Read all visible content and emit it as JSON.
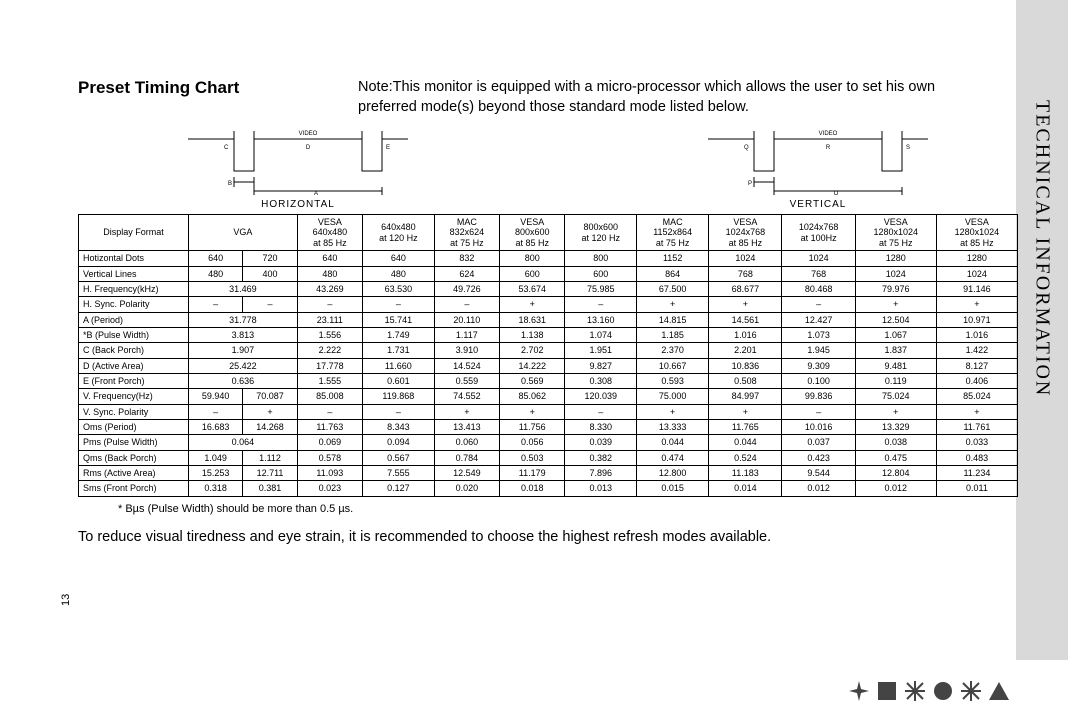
{
  "title": "Preset Timing Chart",
  "note": "Note:This monitor is equipped with a micro-processor which allows the user to set his own preferred mode(s) beyond those standard mode listed below.",
  "diagram_h": {
    "video": "VIDEO",
    "c": "C",
    "d": "D",
    "e": "E",
    "b": "B",
    "a": "A",
    "label": "HORIZONTAL"
  },
  "diagram_v": {
    "video": "VIDEO",
    "q": "Q",
    "r": "R",
    "s": "S",
    "p": "P",
    "o": "O",
    "label": "VERTICAL"
  },
  "side_tab": "TECHNICAL INFORMATION",
  "page_num": "13",
  "footnote": "* Bµs (Pulse Width) should be more than 0.5 µs.",
  "bottom_note": "To reduce visual tiredness and eye strain, it is recommended to choose the highest refresh modes available.",
  "table": {
    "header_row_label": "Display Format",
    "columns": [
      {
        "span": 2,
        "lines": [
          "VGA"
        ]
      },
      {
        "span": 1,
        "lines": [
          "VESA",
          "640x480",
          "at 85 Hz"
        ]
      },
      {
        "span": 1,
        "lines": [
          "640x480",
          "at 120 Hz"
        ]
      },
      {
        "span": 1,
        "lines": [
          "MAC",
          "832x624",
          "at 75 Hz"
        ]
      },
      {
        "span": 1,
        "lines": [
          "VESA",
          "800x600",
          "at 85 Hz"
        ]
      },
      {
        "span": 1,
        "lines": [
          "800x600",
          "at 120 Hz"
        ]
      },
      {
        "span": 1,
        "lines": [
          "MAC",
          "1152x864",
          "at 75 Hz"
        ]
      },
      {
        "span": 1,
        "lines": [
          "VESA",
          "1024x768",
          "at 85 Hz"
        ]
      },
      {
        "span": 1,
        "lines": [
          "1024x768",
          "at 100Hz"
        ]
      },
      {
        "span": 1,
        "lines": [
          "VESA",
          "1280x1024",
          "at 75 Hz"
        ]
      },
      {
        "span": 1,
        "lines": [
          "VESA",
          "1280x1024",
          "at 85 Hz"
        ]
      }
    ],
    "rows": [
      {
        "label": "Hotizontal Dots",
        "cells": [
          "640",
          "720",
          "640",
          "640",
          "832",
          "800",
          "800",
          "1152",
          "1024",
          "1024",
          "1280",
          "1280"
        ]
      },
      {
        "label": "Vertical Lines",
        "cells": [
          "480",
          "400",
          "480",
          "480",
          "624",
          "600",
          "600",
          "864",
          "768",
          "768",
          "1024",
          "1024"
        ]
      },
      {
        "label": "H. Frequency(kHz)",
        "cells": [
          {
            "span": 2,
            "v": "31.469"
          },
          "43.269",
          "63.530",
          "49.726",
          "53.674",
          "75.985",
          "67.500",
          "68.677",
          "80.468",
          "79.976",
          "91.146"
        ]
      },
      {
        "label": "H. Sync. Polarity",
        "cells": [
          "–",
          "–",
          "–",
          "–",
          "–",
          "+",
          "–",
          "+",
          "+",
          "–",
          "+",
          "+"
        ]
      },
      {
        "label": "A    (Period)",
        "cells": [
          {
            "span": 2,
            "v": "31.778"
          },
          "23.111",
          "15.741",
          "20.110",
          "18.631",
          "13.160",
          "14.815",
          "14.561",
          "12.427",
          "12.504",
          "10.971"
        ]
      },
      {
        "label": "*B   (Pulse Width)",
        "cells": [
          {
            "span": 2,
            "v": "3.813"
          },
          "1.556",
          "1.749",
          "1.117",
          "1.138",
          "1.074",
          "1.185",
          "1.016",
          "1.073",
          "1.067",
          "1.016"
        ]
      },
      {
        "label": "C    (Back Porch)",
        "cells": [
          {
            "span": 2,
            "v": "1.907"
          },
          "2.222",
          "1.731",
          "3.910",
          "2.702",
          "1.951",
          "2.370",
          "2.201",
          "1.945",
          "1.837",
          "1.422"
        ]
      },
      {
        "label": "D    (Active Area)",
        "cells": [
          {
            "span": 2,
            "v": "25.422"
          },
          "17.778",
          "11.660",
          "14.524",
          "14.222",
          "9.827",
          "10.667",
          "10.836",
          "9.309",
          "9.481",
          "8.127"
        ]
      },
      {
        "label": "E    (Front Porch)",
        "cells": [
          {
            "span": 2,
            "v": "0.636"
          },
          "1.555",
          "0.601",
          "0.559",
          "0.569",
          "0.308",
          "0.593",
          "0.508",
          "0.100",
          "0.119",
          "0.406"
        ]
      },
      {
        "label": "V. Frequency(Hz)",
        "cells": [
          "59.940",
          "70.087",
          "85.008",
          "119.868",
          "74.552",
          "85.062",
          "120.039",
          "75.000",
          "84.997",
          "99.836",
          "75.024",
          "85.024"
        ]
      },
      {
        "label": "V. Sync. Polarity",
        "cells": [
          "–",
          "+",
          "–",
          "–",
          "+",
          "+",
          "–",
          "+",
          "+",
          "–",
          "+",
          "+"
        ]
      },
      {
        "label": "Oms (Period)",
        "cells": [
          "16.683",
          "14.268",
          "11.763",
          "8.343",
          "13.413",
          "11.756",
          "8.330",
          "13.333",
          "11.765",
          "10.016",
          "13.329",
          "11.761"
        ]
      },
      {
        "label": "Pms (Pulse Width)",
        "cells": [
          {
            "span": 2,
            "v": "0.064"
          },
          "0.069",
          "0.094",
          "0.060",
          "0.056",
          "0.039",
          "0.044",
          "0.044",
          "0.037",
          "0.038",
          "0.033"
        ]
      },
      {
        "label": "Qms (Back Porch)",
        "cells": [
          "1.049",
          "1.112",
          "0.578",
          "0.567",
          "0.784",
          "0.503",
          "0.382",
          "0.474",
          "0.524",
          "0.423",
          "0.475",
          "0.483"
        ]
      },
      {
        "label": "Rms (Active Area)",
        "cells": [
          "15.253",
          "12.711",
          "11.093",
          "7.555",
          "12.549",
          "11.179",
          "7.896",
          "12.800",
          "11.183",
          "9.544",
          "12.804",
          "11.234"
        ]
      },
      {
        "label": "Sms (Front Porch)",
        "cells": [
          "0.318",
          "0.381",
          "0.023",
          "0.127",
          "0.020",
          "0.018",
          "0.013",
          "0.015",
          "0.014",
          "0.012",
          "0.012",
          "0.011"
        ]
      }
    ]
  }
}
